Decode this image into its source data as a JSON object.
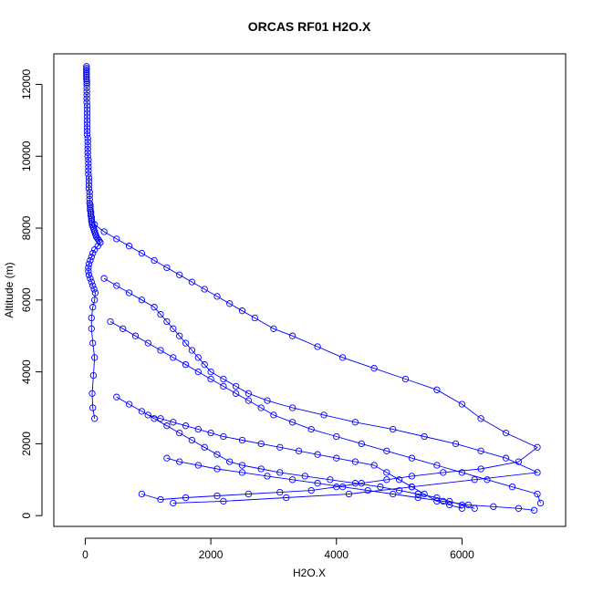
{
  "chart_data": {
    "type": "line",
    "title": "ORCAS RF01 H2O.X",
    "xlabel": "H2O.X",
    "ylabel": "Altitude (m)",
    "xlim": [
      -500,
      7650
    ],
    "ylim": [
      -300,
      12850
    ],
    "xticks": [
      0,
      2000,
      4000,
      6000
    ],
    "yticks": [
      0,
      2000,
      4000,
      6000,
      8000,
      10000,
      12000
    ],
    "xtick_labels": [
      "0",
      "2000",
      "4000",
      "6000"
    ],
    "ytick_labels": [
      "0",
      "2000",
      "4000",
      "6000",
      "8000",
      "10000",
      "12000"
    ],
    "grid": false,
    "color": "#0000ff",
    "marker": "open-circle",
    "series": [
      {
        "x": [
          20,
          20,
          20,
          20,
          20,
          20,
          20,
          20,
          25,
          25,
          25,
          25,
          25,
          25,
          25,
          25,
          30,
          30,
          30,
          30,
          30,
          30,
          30,
          30,
          30,
          40,
          40,
          40,
          40,
          40,
          40,
          50,
          50,
          50,
          50,
          50,
          60,
          60,
          60,
          60,
          70,
          70,
          70,
          70,
          80,
          80,
          80,
          80,
          90,
          90,
          90,
          100,
          100,
          100,
          110,
          110,
          120,
          130,
          140,
          150,
          160,
          170,
          180,
          200,
          220,
          240
        ],
        "y": [
          12500,
          12450,
          12400,
          12350,
          12300,
          12250,
          12200,
          12150,
          12100,
          12050,
          12000,
          11900,
          11800,
          11700,
          11600,
          11500,
          11400,
          11300,
          11200,
          11100,
          11000,
          10900,
          10800,
          10700,
          10600,
          10500,
          10400,
          10300,
          10200,
          10100,
          10000,
          9900,
          9800,
          9700,
          9600,
          9500,
          9400,
          9300,
          9200,
          9100,
          9000,
          8900,
          8800,
          8700,
          8650,
          8600,
          8550,
          8500,
          8450,
          8400,
          8350,
          8300,
          8250,
          8200,
          8150,
          8100,
          8050,
          8000,
          7950,
          7900,
          7850,
          7800,
          7750,
          7700,
          7650,
          7600
        ]
      },
      {
        "x": [
          240,
          200,
          150,
          120,
          100,
          80,
          60,
          50,
          50,
          60,
          80,
          100,
          120,
          140,
          160,
          150,
          120,
          100,
          100,
          120,
          150,
          130,
          110,
          120,
          150
        ],
        "y": [
          7600,
          7500,
          7400,
          7300,
          7200,
          7100,
          7000,
          6900,
          6800,
          6700,
          6600,
          6500,
          6400,
          6300,
          6200,
          6000,
          5800,
          5500,
          5200,
          4800,
          4400,
          3900,
          3400,
          3000,
          2700
        ]
      },
      {
        "x": [
          150,
          300,
          500,
          700,
          900,
          1100,
          1300,
          1500,
          1700,
          1900,
          2100,
          2300,
          2500,
          2700,
          3000,
          3300,
          3700,
          4100,
          4600,
          5100,
          5600,
          6000,
          6300,
          6700,
          7200,
          6900,
          6300,
          5700,
          5200,
          4800,
          4400,
          4000,
          3600,
          3100,
          2600,
          2100,
          1600,
          1200,
          900
        ],
        "y": [
          8100,
          7900,
          7700,
          7500,
          7300,
          7100,
          6900,
          6700,
          6500,
          6300,
          6100,
          5900,
          5700,
          5500,
          5200,
          5000,
          4700,
          4400,
          4100,
          3800,
          3500,
          3100,
          2700,
          2300,
          1900,
          1500,
          1300,
          1200,
          1100,
          1000,
          900,
          800,
          700,
          650,
          600,
          550,
          500,
          450,
          600
        ]
      },
      {
        "x": [
          300,
          500,
          700,
          900,
          1100,
          1200,
          1300,
          1400,
          1500,
          1600,
          1700,
          1800,
          1900,
          2000,
          2200,
          2400,
          2600,
          2900,
          3300,
          3800,
          4300,
          4900,
          5400,
          5900,
          6300,
          6700,
          7200,
          6200,
          5200,
          4200,
          3200,
          2200,
          1400
        ],
        "y": [
          6600,
          6400,
          6200,
          6000,
          5800,
          5600,
          5400,
          5200,
          5000,
          4800,
          4600,
          4400,
          4200,
          4000,
          3800,
          3600,
          3400,
          3200,
          3000,
          2800,
          2600,
          2400,
          2200,
          2000,
          1800,
          1600,
          1200,
          1000,
          800,
          600,
          500,
          400,
          350
        ]
      },
      {
        "x": [
          400,
          600,
          800,
          1000,
          1200,
          1400,
          1600,
          1800,
          2000,
          2200,
          2400,
          2600,
          2800,
          3000,
          3300,
          3600,
          4000,
          4400,
          4800,
          5200,
          5600,
          6000,
          6400,
          6800,
          7200,
          7250
        ],
        "y": [
          5400,
          5200,
          5000,
          4800,
          4600,
          4400,
          4200,
          4000,
          3800,
          3600,
          3400,
          3200,
          3000,
          2800,
          2600,
          2400,
          2200,
          2000,
          1800,
          1600,
          1400,
          1200,
          1000,
          800,
          600,
          350
        ]
      },
      {
        "x": [
          500,
          700,
          900,
          1100,
          1300,
          1500,
          1700,
          1900,
          2100,
          2300,
          2500,
          2800,
          3100,
          3500,
          3900,
          4300,
          4700,
          5000,
          5300,
          5600,
          5800,
          6000,
          6200
        ],
        "y": [
          3300,
          3100,
          2900,
          2700,
          2500,
          2300,
          2100,
          1900,
          1700,
          1500,
          1400,
          1300,
          1200,
          1100,
          1000,
          900,
          800,
          700,
          600,
          500,
          400,
          300,
          200
        ]
      },
      {
        "x": [
          1000,
          1200,
          1400,
          1600,
          1800,
          2000,
          2200,
          2500,
          2800,
          3100,
          3400,
          3700,
          4000,
          4300,
          4600,
          4800,
          5000,
          5200,
          5400,
          5600,
          5800,
          6000
        ],
        "y": [
          2800,
          2700,
          2600,
          2500,
          2400,
          2300,
          2200,
          2100,
          2000,
          1900,
          1800,
          1700,
          1600,
          1500,
          1400,
          1200,
          1000,
          800,
          600,
          400,
          300,
          200
        ]
      },
      {
        "x": [
          1300,
          1500,
          1800,
          2100,
          2500,
          2900,
          3300,
          3700,
          4100,
          4500,
          4900,
          5300,
          5700,
          6100,
          6500,
          6900,
          7150
        ],
        "y": [
          1600,
          1500,
          1400,
          1300,
          1200,
          1100,
          1000,
          900,
          800,
          700,
          600,
          500,
          400,
          300,
          250,
          200,
          150
        ]
      }
    ]
  }
}
